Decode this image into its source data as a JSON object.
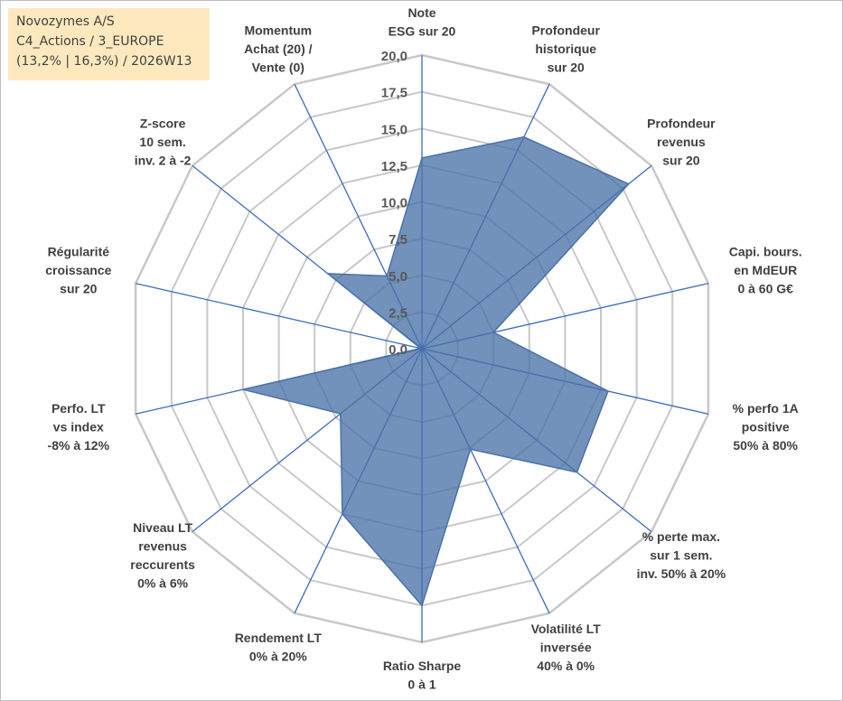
{
  "info": {
    "company": "Novozymes A/S",
    "portfolio": "C4_Actions / 3_EUROPE",
    "stats": "(13,2% | 16,3%) / 2026W13"
  },
  "chart_data": {
    "type": "radar",
    "title": "",
    "scale": {
      "min": 0,
      "max": 20,
      "step": 2.5
    },
    "ticks": [
      "0,0",
      "2,5",
      "5,0",
      "7,5",
      "10,0",
      "12,5",
      "15,0",
      "17,5",
      "20,0"
    ],
    "axes": [
      {
        "label": [
          "Note",
          "ESG sur 20"
        ],
        "value": 13.0
      },
      {
        "label": [
          "Profondeur",
          "historique",
          "sur 20"
        ],
        "value": 16.0
      },
      {
        "label": [
          "Profondeur",
          "revenus",
          "sur 20"
        ],
        "value": 18.0
      },
      {
        "label": [
          "Capi. bours.",
          "en MdEUR",
          "0 à 60 G€"
        ],
        "value": 5.0
      },
      {
        "label": [
          "% perfo 1A",
          "positive",
          "50% à 80%"
        ],
        "value": 13.0
      },
      {
        "label": [
          "% perte max.",
          "sur 1 sem.",
          "inv. 50% à 20%"
        ],
        "value": 13.5
      },
      {
        "label": [
          "Volatilité LT",
          "inversée",
          "40% à 0%"
        ],
        "value": 7.6
      },
      {
        "label": [
          "Ratio Sharpe",
          "0 à 1"
        ],
        "value": 17.5
      },
      {
        "label": [
          "Rendement LT",
          "0% à 20%"
        ],
        "value": 12.5
      },
      {
        "label": [
          "Niveau LT",
          "revenus",
          "reccurents",
          "0% à 6%"
        ],
        "value": 7.1
      },
      {
        "label": [
          "Perfo. LT",
          "vs index",
          "-8% à 12%"
        ],
        "value": 12.5
      },
      {
        "label": [
          "Régularité",
          "croissance",
          "sur 20"
        ],
        "value": 0.1
      },
      {
        "label": [
          "Z-score",
          "10 sem.",
          "inv. 2 à -2"
        ],
        "value": 8.2
      },
      {
        "label": [
          "Momentum",
          "Achat (20) /",
          "Vente (0)"
        ],
        "value": 5.5
      }
    ],
    "colors": {
      "fill": "#4a72a8",
      "fill_opacity": 0.78,
      "stroke": "#4a72a8",
      "grid": "#c8c8c8",
      "spoke": "#3a6bbf"
    },
    "grid": true,
    "legend": "none"
  }
}
